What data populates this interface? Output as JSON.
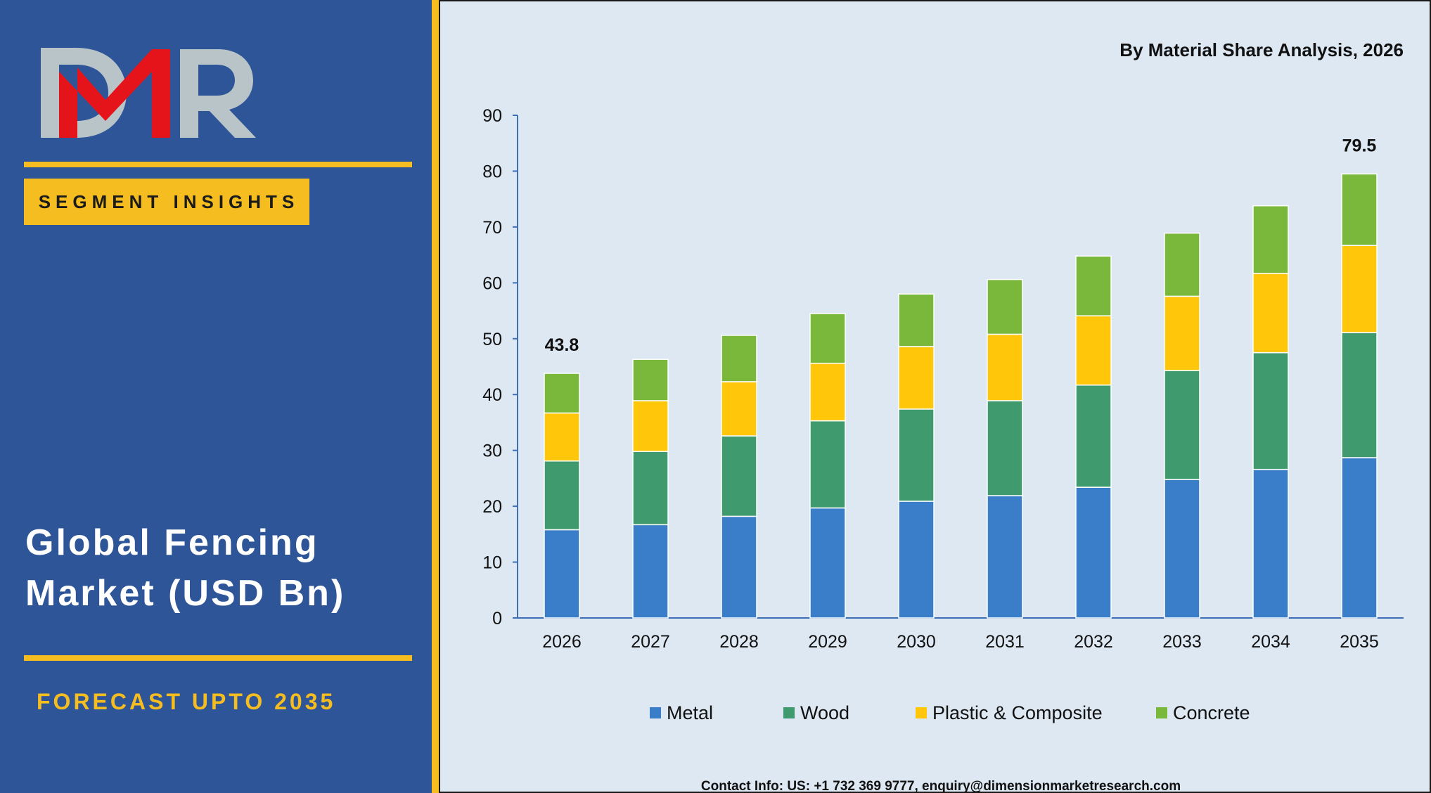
{
  "brand": {
    "logo_text": "DMR",
    "segment_badge": "SEGMENT INSIGHTS",
    "market_title_line1": "Global Fencing",
    "market_title_line2": "Market (USD Bn)",
    "forecast_label": "FORECAST UPTO 2035"
  },
  "colors": {
    "panel_bg": "#2e5597",
    "accent_gold": "#f5bd1f",
    "chart_bg": "#dde8f3",
    "logo_red": "#e5141a",
    "logo_grey": "#b8c4c8"
  },
  "contact": "Contact Info: US: +1 732 369 9777, enquiry@dimensionmarketresearch.com",
  "chart_data": {
    "type": "bar",
    "stacked": true,
    "title": "By Material Share Analysis, 2026",
    "xlabel": "",
    "ylabel": "",
    "ylim": [
      0,
      90
    ],
    "yticks": [
      0,
      10,
      20,
      30,
      40,
      50,
      60,
      70,
      80,
      90
    ],
    "grid": false,
    "legend": "bottom",
    "categories": [
      "2026",
      "2027",
      "2028",
      "2029",
      "2030",
      "2031",
      "2032",
      "2033",
      "2034",
      "2035"
    ],
    "series": [
      {
        "name": "Metal",
        "color": "#3a7dc9",
        "values": [
          15.8,
          16.7,
          18.2,
          19.7,
          20.9,
          21.9,
          23.4,
          24.8,
          26.6,
          28.7
        ]
      },
      {
        "name": "Wood",
        "color": "#3f9a6e",
        "values": [
          12.3,
          13.1,
          14.4,
          15.6,
          16.5,
          17.0,
          18.3,
          19.5,
          20.9,
          22.4
        ]
      },
      {
        "name": "Plastic & Composite",
        "color": "#ffc60a",
        "values": [
          8.6,
          9.1,
          9.7,
          10.3,
          11.2,
          11.9,
          12.4,
          13.3,
          14.2,
          15.6
        ]
      },
      {
        "name": "Concrete",
        "color": "#7ab83c",
        "values": [
          7.1,
          7.4,
          8.3,
          8.9,
          9.4,
          9.8,
          10.7,
          11.3,
          12.1,
          12.8
        ]
      }
    ],
    "totals": [
      {
        "category": "2026",
        "label": "43.8"
      },
      {
        "category": "2035",
        "label": "79.5"
      }
    ]
  }
}
